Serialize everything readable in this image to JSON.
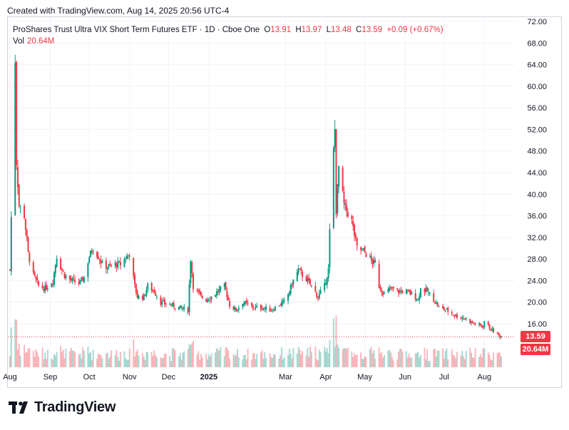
{
  "header": {
    "created_text": "Created with TradingView.com, Aug 14, 2025 20:56 UTC-4"
  },
  "legend": {
    "title": "ProShares Trust Ultra VIX Short Term Futures ETF · 1D · Cboe One",
    "open_label": "O",
    "open_value": "13.91",
    "high_label": "H",
    "high_value": "13.97",
    "low_label": "L",
    "low_value": "13.48",
    "close_label": "C",
    "close_value": "13.59",
    "change": "+0.09 (+0.67%)",
    "vol_label": "Vol",
    "vol_value": "20.64M"
  },
  "badges": {
    "price": "13.59",
    "volume": "20.64M"
  },
  "footer": {
    "brand": "TradingView"
  },
  "colors": {
    "up": "#089981",
    "down": "#f23645",
    "grid": "#f0f3fa",
    "text": "#131722"
  },
  "chart_data": {
    "type": "candlestick",
    "y_axis": {
      "ticks": [
        "72.00",
        "68.00",
        "64.00",
        "60.00",
        "56.00",
        "52.00",
        "48.00",
        "44.00",
        "40.00",
        "36.00",
        "32.00",
        "28.00",
        "24.00",
        "20.00",
        "16.00"
      ],
      "range": [
        12,
        72
      ],
      "position": "right"
    },
    "x_axis": {
      "ticks": [
        "Aug",
        "Sep",
        "Oct",
        "Nov",
        "Dec",
        "2025",
        "Mar",
        "Apr",
        "May",
        "Jun",
        "Jul",
        "Aug"
      ],
      "range": [
        "2024-08-01",
        "2025-08-14"
      ]
    },
    "last_price": 13.59,
    "last_volume": "20.64M",
    "grid": true,
    "series": [
      {
        "x": "2024-08-01",
        "close": 26
      },
      {
        "x": "2024-08-05",
        "close": 65
      },
      {
        "x": "2024-08-06",
        "close": 46
      },
      {
        "x": "2024-08-08",
        "close": 38
      },
      {
        "x": "2024-08-12",
        "close": 36
      },
      {
        "x": "2024-08-15",
        "close": 29
      },
      {
        "x": "2024-08-19",
        "close": 25
      },
      {
        "x": "2024-08-23",
        "close": 23
      },
      {
        "x": "2024-08-28",
        "close": 22.5
      },
      {
        "x": "2024-09-03",
        "close": 24
      },
      {
        "x": "2024-09-06",
        "close": 28.5
      },
      {
        "x": "2024-09-09",
        "close": 26.5
      },
      {
        "x": "2024-09-12",
        "close": 25
      },
      {
        "x": "2024-09-17",
        "close": 24
      },
      {
        "x": "2024-09-23",
        "close": 23.5
      },
      {
        "x": "2024-09-27",
        "close": 24.5
      },
      {
        "x": "2024-10-01",
        "close": 28.5
      },
      {
        "x": "2024-10-04",
        "close": 30
      },
      {
        "x": "2024-10-08",
        "close": 28.5
      },
      {
        "x": "2024-10-11",
        "close": 27
      },
      {
        "x": "2024-10-16",
        "close": 26.5
      },
      {
        "x": "2024-10-21",
        "close": 27
      },
      {
        "x": "2024-10-25",
        "close": 27
      },
      {
        "x": "2024-10-30",
        "close": 28.5
      },
      {
        "x": "2024-11-01",
        "close": 29
      },
      {
        "x": "2024-11-05",
        "close": 23
      },
      {
        "x": "2024-11-07",
        "close": 21
      },
      {
        "x": "2024-11-12",
        "close": 21
      },
      {
        "x": "2024-11-15",
        "close": 23
      },
      {
        "x": "2024-11-20",
        "close": 22
      },
      {
        "x": "2024-11-25",
        "close": 20
      },
      {
        "x": "2024-12-02",
        "close": 19.5
      },
      {
        "x": "2024-12-09",
        "close": 19
      },
      {
        "x": "2024-12-16",
        "close": 18.5
      },
      {
        "x": "2024-12-18",
        "close": 28
      },
      {
        "x": "2024-12-20",
        "close": 23
      },
      {
        "x": "2024-12-26",
        "close": 21
      },
      {
        "x": "2024-12-30",
        "close": 20.5
      },
      {
        "x": "2025-01-03",
        "close": 21
      },
      {
        "x": "2025-01-08",
        "close": 22
      },
      {
        "x": "2025-01-13",
        "close": 23
      },
      {
        "x": "2025-01-17",
        "close": 19.5
      },
      {
        "x": "2025-01-22",
        "close": 18.5
      },
      {
        "x": "2025-01-27",
        "close": 20
      },
      {
        "x": "2025-01-31",
        "close": 19.5
      },
      {
        "x": "2025-02-05",
        "close": 19
      },
      {
        "x": "2025-02-11",
        "close": 19
      },
      {
        "x": "2025-02-18",
        "close": 18.5
      },
      {
        "x": "2025-02-24",
        "close": 19.5
      },
      {
        "x": "2025-02-28",
        "close": 20
      },
      {
        "x": "2025-03-04",
        "close": 22
      },
      {
        "x": "2025-03-07",
        "close": 24
      },
      {
        "x": "2025-03-11",
        "close": 26
      },
      {
        "x": "2025-03-14",
        "close": 25
      },
      {
        "x": "2025-03-18",
        "close": 24
      },
      {
        "x": "2025-03-21",
        "close": 23
      },
      {
        "x": "2025-03-26",
        "close": 21
      },
      {
        "x": "2025-03-31",
        "close": 23
      },
      {
        "x": "2025-04-03",
        "close": 26
      },
      {
        "x": "2025-04-04",
        "close": 33
      },
      {
        "x": "2025-04-07",
        "close": 48
      },
      {
        "x": "2025-04-08",
        "close": 52
      },
      {
        "x": "2025-04-09",
        "close": 37
      },
      {
        "x": "2025-04-11",
        "close": 45
      },
      {
        "x": "2025-04-15",
        "close": 38
      },
      {
        "x": "2025-04-21",
        "close": 35
      },
      {
        "x": "2025-04-25",
        "close": 30
      },
      {
        "x": "2025-04-30",
        "close": 29.5
      },
      {
        "x": "2025-05-05",
        "close": 28
      },
      {
        "x": "2025-05-09",
        "close": 27
      },
      {
        "x": "2025-05-12",
        "close": 23
      },
      {
        "x": "2025-05-16",
        "close": 21.5
      },
      {
        "x": "2025-05-21",
        "close": 22.5
      },
      {
        "x": "2025-05-27",
        "close": 22
      },
      {
        "x": "2025-06-02",
        "close": 22
      },
      {
        "x": "2025-06-06",
        "close": 21.5
      },
      {
        "x": "2025-06-11",
        "close": 20.5
      },
      {
        "x": "2025-06-13",
        "close": 22.5
      },
      {
        "x": "2025-06-18",
        "close": 22
      },
      {
        "x": "2025-06-23",
        "close": 20.5
      },
      {
        "x": "2025-06-27",
        "close": 19
      },
      {
        "x": "2025-07-03",
        "close": 18.5
      },
      {
        "x": "2025-07-10",
        "close": 17.5
      },
      {
        "x": "2025-07-17",
        "close": 17
      },
      {
        "x": "2025-07-24",
        "close": 16
      },
      {
        "x": "2025-07-31",
        "close": 15.5
      },
      {
        "x": "2025-08-01",
        "close": 16.5
      },
      {
        "x": "2025-08-06",
        "close": 15
      },
      {
        "x": "2025-08-11",
        "close": 14
      },
      {
        "x": "2025-08-14",
        "close": 13.59
      }
    ]
  }
}
